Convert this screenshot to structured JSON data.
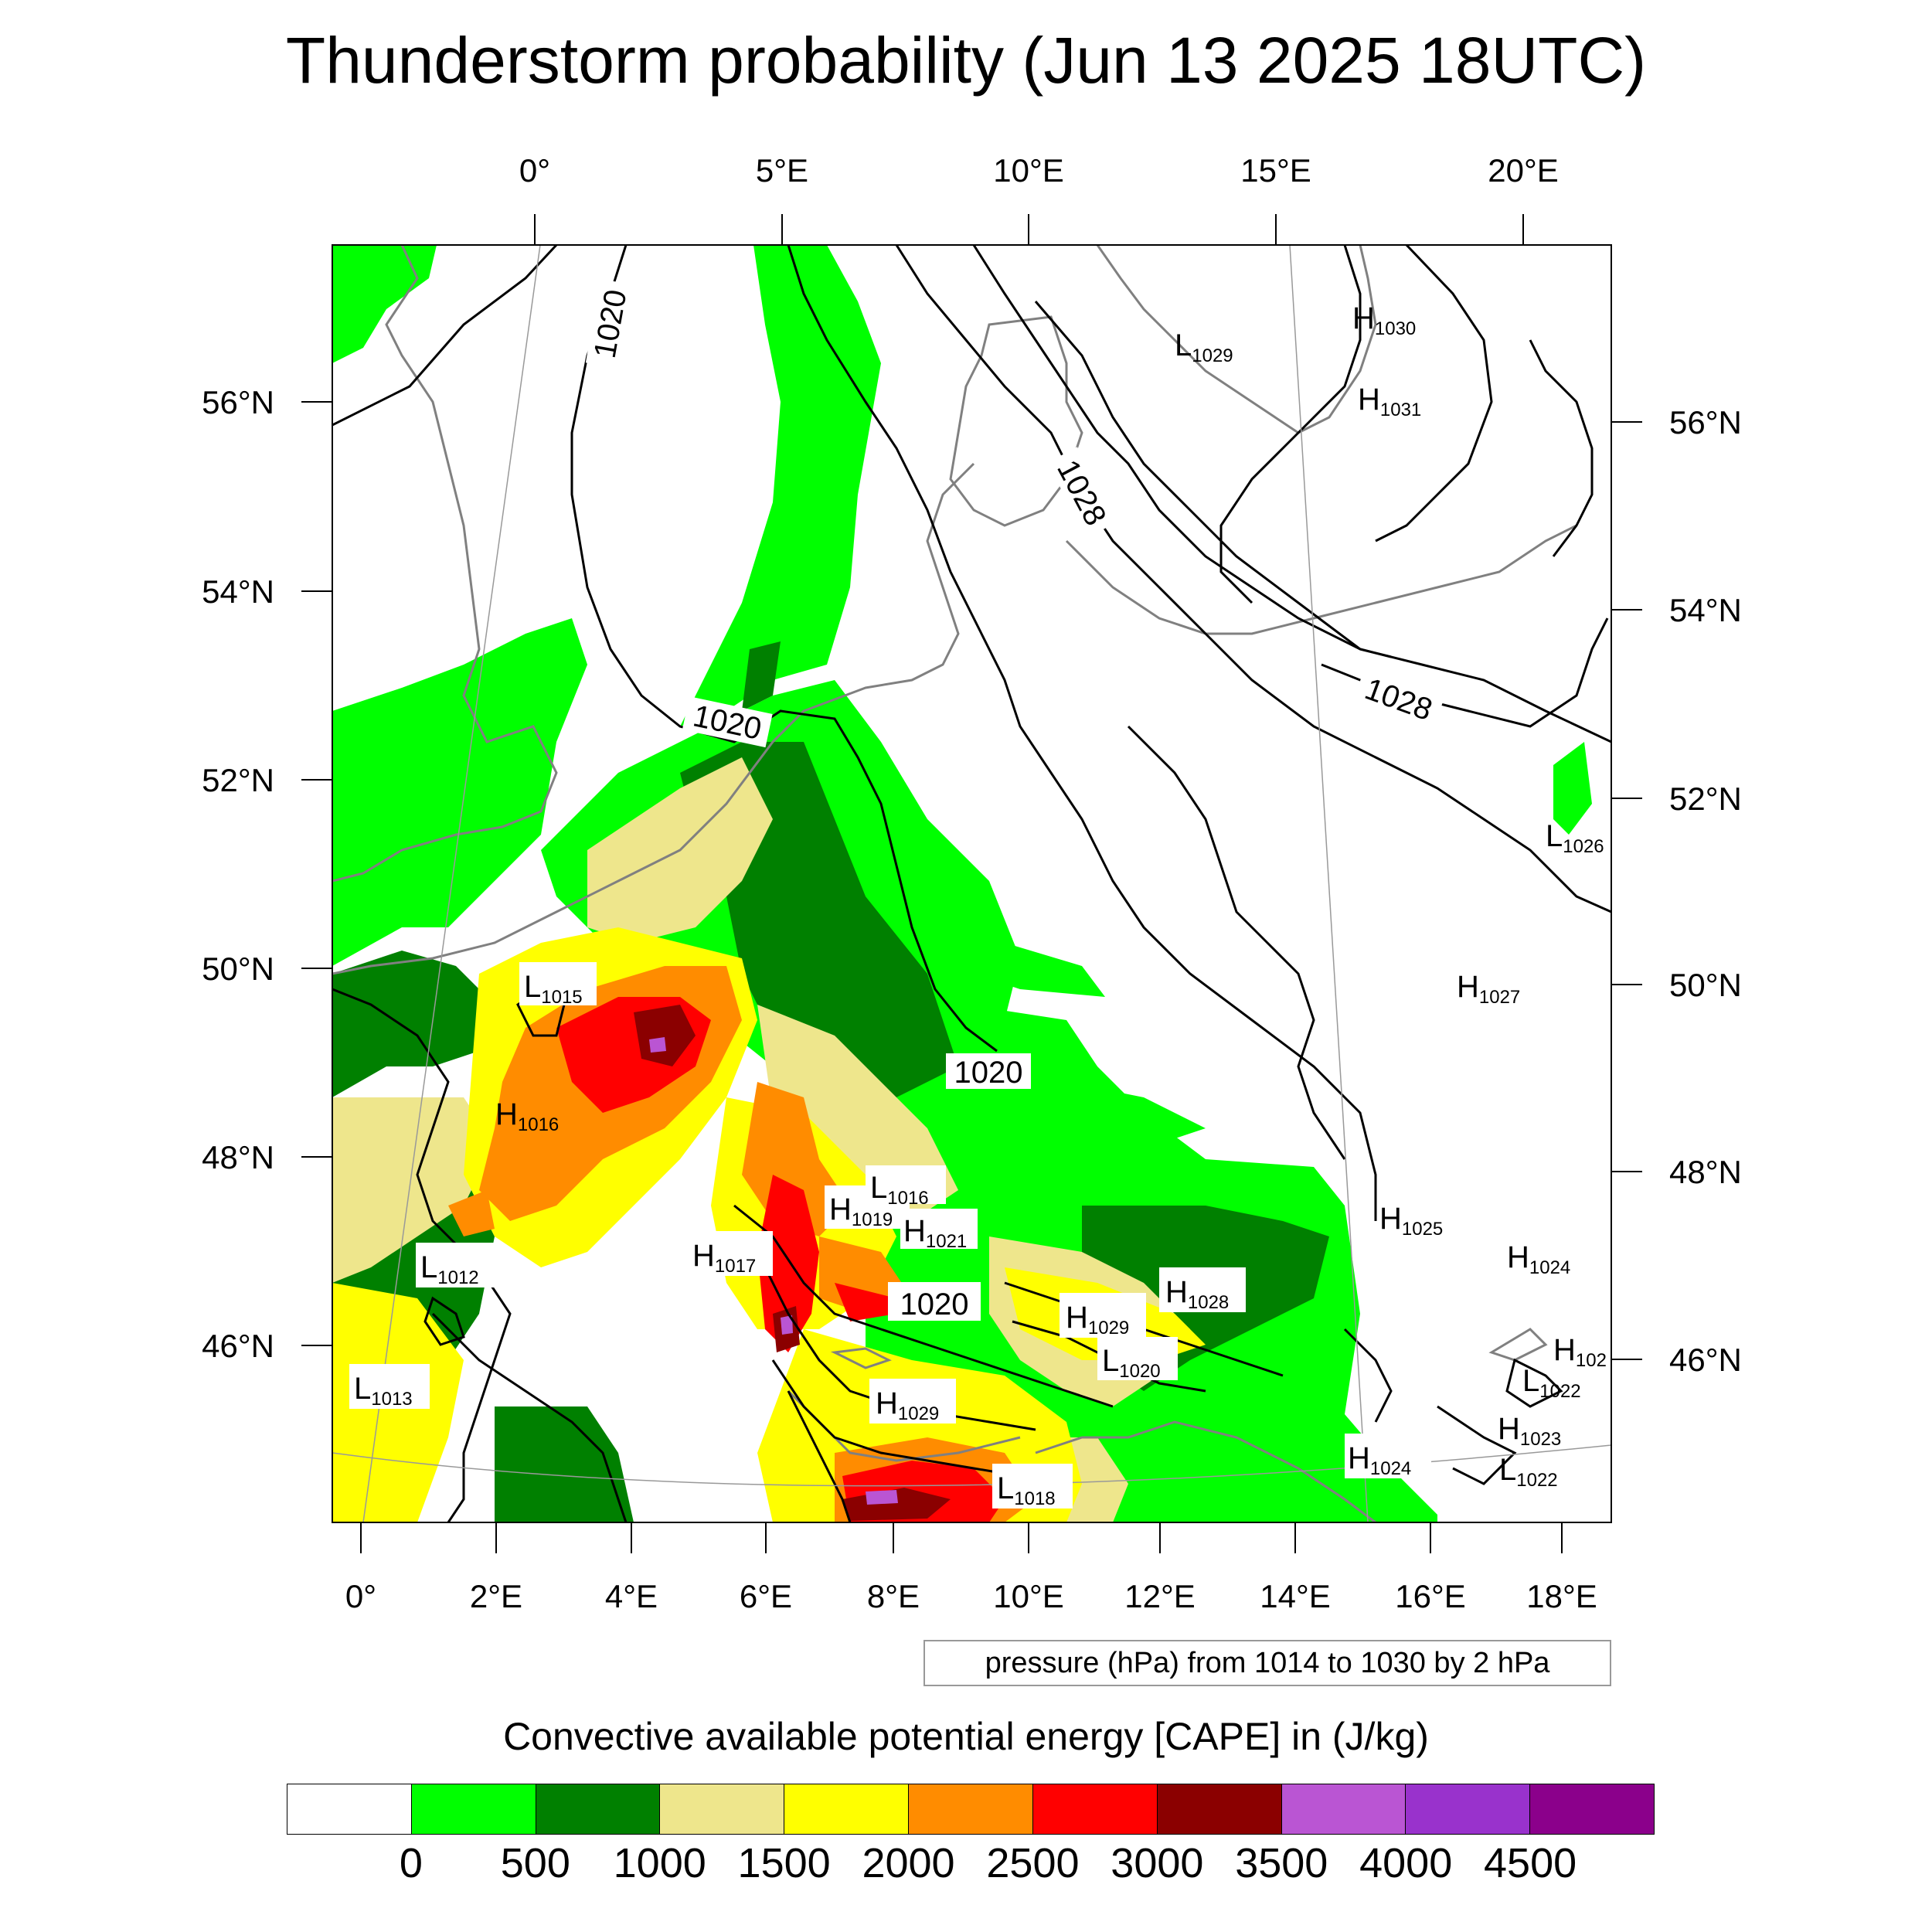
{
  "title": "Thunderstorm probability (Jun 13 2025 18UTC)",
  "map": {
    "top_lon_labels": [
      "0°",
      "5°E",
      "10°E",
      "15°E",
      "20°E"
    ],
    "bottom_lon_labels": [
      "0°",
      "2°E",
      "4°E",
      "6°E",
      "8°E",
      "10°E",
      "12°E",
      "14°E",
      "16°E",
      "18°E"
    ],
    "left_lat_labels": [
      "56°N",
      "54°N",
      "52°N",
      "50°N",
      "48°N",
      "46°N"
    ],
    "right_lat_labels": [
      "56°N",
      "54°N",
      "52°N",
      "50°N",
      "48°N",
      "46°N"
    ],
    "isobar_labels": [
      "1020",
      "1020",
      "1028",
      "1028",
      "1020",
      "1020"
    ],
    "pressure_centers": [
      {
        "type": "L",
        "value": "1015"
      },
      {
        "type": "H",
        "value": "1016"
      },
      {
        "type": "L",
        "value": "1012"
      },
      {
        "type": "L",
        "value": "1013"
      },
      {
        "type": "H",
        "value": "1017"
      },
      {
        "type": "H",
        "value": "1019"
      },
      {
        "type": "L",
        "value": "1016"
      },
      {
        "type": "H",
        "value": "1021"
      },
      {
        "type": "H",
        "value": "1029"
      },
      {
        "type": "H",
        "value": "1028"
      },
      {
        "type": "L",
        "value": "1020"
      },
      {
        "type": "H",
        "value": "1029"
      },
      {
        "type": "L",
        "value": "1018"
      },
      {
        "type": "L",
        "value": "1029"
      },
      {
        "type": "H",
        "value": "1030"
      },
      {
        "type": "H",
        "value": "1031"
      },
      {
        "type": "L",
        "value": "1026"
      },
      {
        "type": "H",
        "value": "1027"
      },
      {
        "type": "H",
        "value": "1025"
      },
      {
        "type": "H",
        "value": "1024"
      },
      {
        "type": "H",
        "value": "102"
      },
      {
        "type": "L",
        "value": "1022"
      },
      {
        "type": "H",
        "value": "1023"
      },
      {
        "type": "L",
        "value": "1022"
      },
      {
        "type": "H",
        "value": "1024"
      }
    ]
  },
  "info_text": "pressure (hPa) from 1014 to 1030 by 2 hPa",
  "colorbar": {
    "title": "Convective available potential energy [CAPE] in (J/kg)",
    "colors": [
      "#ffffff",
      "#00ff00",
      "#008000",
      "#eee68c",
      "#ffff00",
      "#ff8c00",
      "#ff0000",
      "#8b0000",
      "#ba55d3",
      "#9932cc",
      "#8b008b"
    ],
    "ticks": [
      "0",
      "500",
      "1000",
      "1500",
      "2000",
      "2500",
      "3000",
      "3500",
      "4000",
      "4500"
    ]
  }
}
